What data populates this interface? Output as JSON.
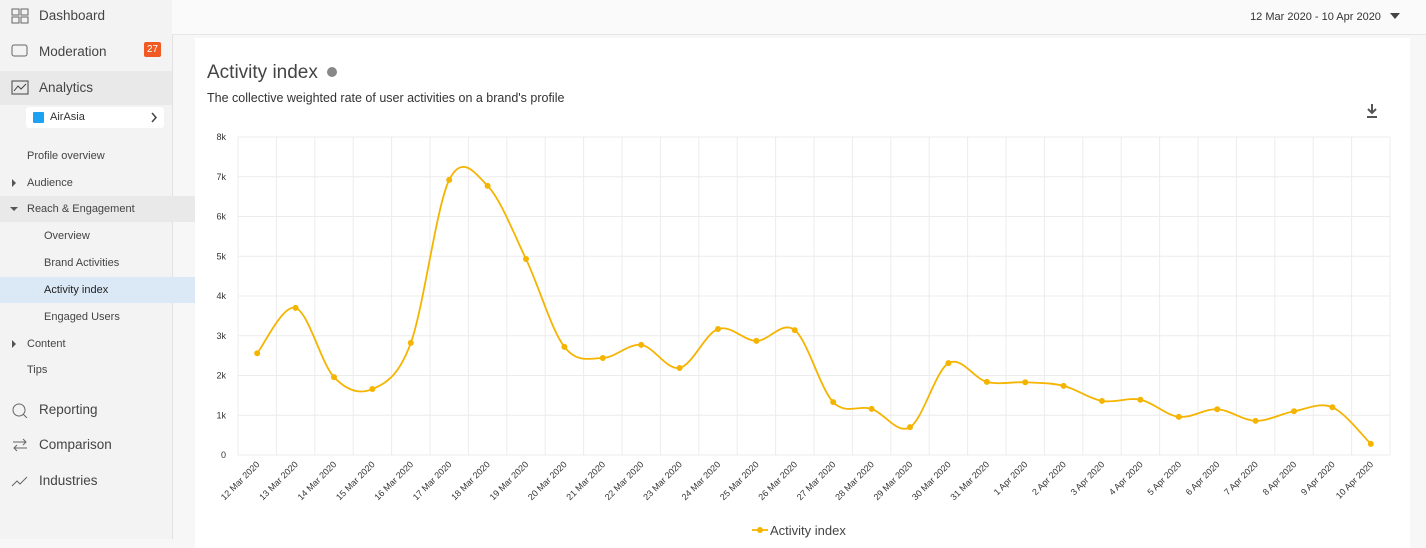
{
  "sidebar": {
    "top": [
      "Dashboard",
      "Moderation",
      "Analytics"
    ],
    "badge": 27,
    "account": "AirAsia",
    "menu": [
      "Profile overview",
      "Audience",
      "Reach & Engagement",
      "Overview",
      "Brand Activities",
      "Activity index",
      "Engaged Users",
      "Content",
      "Tips"
    ],
    "bottom": [
      "Reporting",
      "Comparison",
      "Industries"
    ]
  },
  "header": {
    "date_range": "12 Mar 2020 - 10 Apr 2020"
  },
  "chart_data": {
    "type": "line",
    "title": "Activity index",
    "subtitle": "The collective weighted rate of user activities on a brand's profile",
    "categories": [
      "12 Mar 2020",
      "13 Mar 2020",
      "14 Mar 2020",
      "15 Mar 2020",
      "16 Mar 2020",
      "17 Mar 2020",
      "18 Mar 2020",
      "19 Mar 2020",
      "20 Mar 2020",
      "21 Mar 2020",
      "22 Mar 2020",
      "23 Mar 2020",
      "24 Mar 2020",
      "25 Mar 2020",
      "26 Mar 2020",
      "27 Mar 2020",
      "28 Mar 2020",
      "29 Mar 2020",
      "30 Mar 2020",
      "31 Mar 2020",
      "1 Apr 2020",
      "2 Apr 2020",
      "3 Apr 2020",
      "4 Apr 2020",
      "5 Apr 2020",
      "6 Apr 2020",
      "7 Apr 2020",
      "8 Apr 2020",
      "9 Apr 2020",
      "10 Apr 2020"
    ],
    "series": [
      {
        "name": "Activity index",
        "color": "#f5b400",
        "values": [
          2560,
          3700,
          1960,
          1660,
          2820,
          6920,
          6770,
          4930,
          2720,
          2440,
          2770,
          2190,
          3170,
          2870,
          3140,
          1330,
          1160,
          700,
          2310,
          1840,
          1830,
          1740,
          1360,
          1390,
          960,
          1150,
          860,
          1100,
          1200,
          280
        ]
      }
    ],
    "ylim": [
      0,
      8000
    ],
    "yticks": [
      0,
      {
        "value": 1000,
        "label": "1k"
      },
      {
        "value": 2000,
        "label": "2k"
      },
      {
        "value": 3000,
        "label": "3k"
      },
      {
        "value": 4000,
        "label": "4k"
      },
      {
        "value": 5000,
        "label": "5k"
      },
      {
        "value": 6000,
        "label": "6k"
      },
      {
        "value": 7000,
        "label": "7k"
      },
      {
        "value": 8000,
        "label": "8k"
      }
    ],
    "grid": true,
    "legend": "bottom"
  }
}
